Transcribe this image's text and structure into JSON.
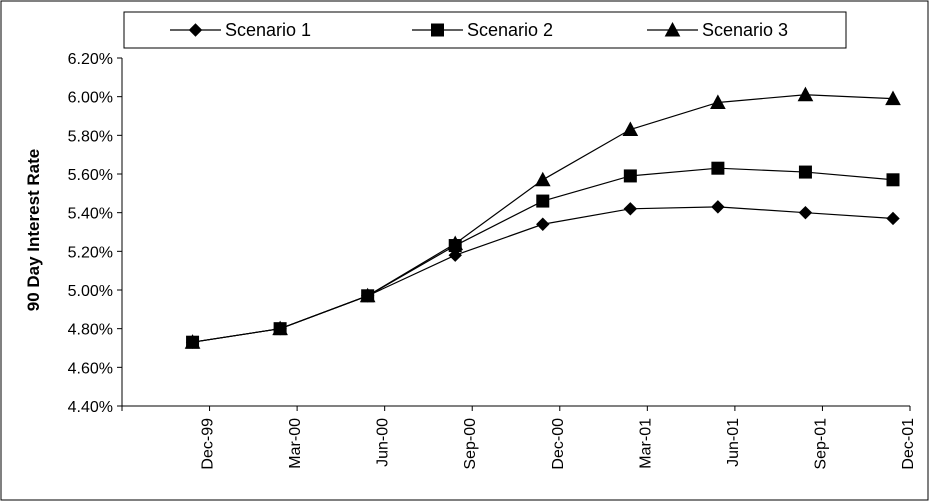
{
  "chart_data": {
    "type": "line",
    "title": "",
    "xlabel": "",
    "ylabel": "90 Day Interest Rate",
    "categories": [
      "Dec-99",
      "Mar-00",
      "Jun-00",
      "Sep-00",
      "Dec-00",
      "Mar-01",
      "Jun-01",
      "Sep-01",
      "Dec-01"
    ],
    "ylim": [
      0.044,
      0.062
    ],
    "y_ticks": [
      {
        "value": 0.044,
        "label": "4.40%"
      },
      {
        "value": 0.046,
        "label": "4.60%"
      },
      {
        "value": 0.048,
        "label": "4.80%"
      },
      {
        "value": 0.05,
        "label": "5.00%"
      },
      {
        "value": 0.052,
        "label": "5.20%"
      },
      {
        "value": 0.054,
        "label": "5.40%"
      },
      {
        "value": 0.056,
        "label": "5.60%"
      },
      {
        "value": 0.058,
        "label": "5.80%"
      },
      {
        "value": 0.06,
        "label": "6.00%"
      },
      {
        "value": 0.062,
        "label": "6.20%"
      }
    ],
    "grid": false,
    "legend_position": "top",
    "series": [
      {
        "name": "Scenario 1",
        "marker": "diamond",
        "values": [
          0.0473,
          0.048,
          0.0497,
          0.0518,
          0.0534,
          0.0542,
          0.0543,
          0.054,
          0.0537
        ]
      },
      {
        "name": "Scenario 2",
        "marker": "square",
        "values": [
          0.0473,
          0.048,
          0.0497,
          0.0523,
          0.0546,
          0.0559,
          0.0563,
          0.0561,
          0.0557
        ]
      },
      {
        "name": "Scenario 3",
        "marker": "triangle",
        "values": [
          0.0473,
          0.048,
          0.0497,
          0.0524,
          0.0557,
          0.0583,
          0.0597,
          0.0601,
          0.0599
        ]
      }
    ],
    "colors": {
      "line": "#000000",
      "marker": "#000000",
      "background": "#ffffff",
      "border": "#000000"
    }
  }
}
